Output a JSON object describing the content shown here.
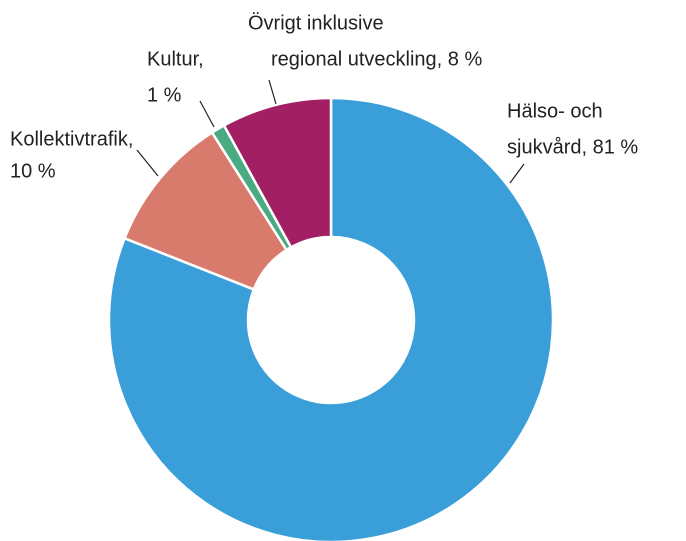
{
  "chart_data": {
    "type": "pie",
    "labels": [
      [
        "Hälso- och",
        "sjukvård, 81 %"
      ],
      [
        "Kollektivtrafik,",
        "10 %"
      ],
      [
        "Kultur,",
        "1 %"
      ],
      [
        "Övrigt inklusive",
        "regional utveckling, 8 %"
      ]
    ],
    "values": [
      81,
      10,
      1,
      8
    ],
    "colors": [
      "#3a9ed8",
      "#d97b6c",
      "#4aaa82",
      "#a31f63"
    ],
    "donut": true
  }
}
